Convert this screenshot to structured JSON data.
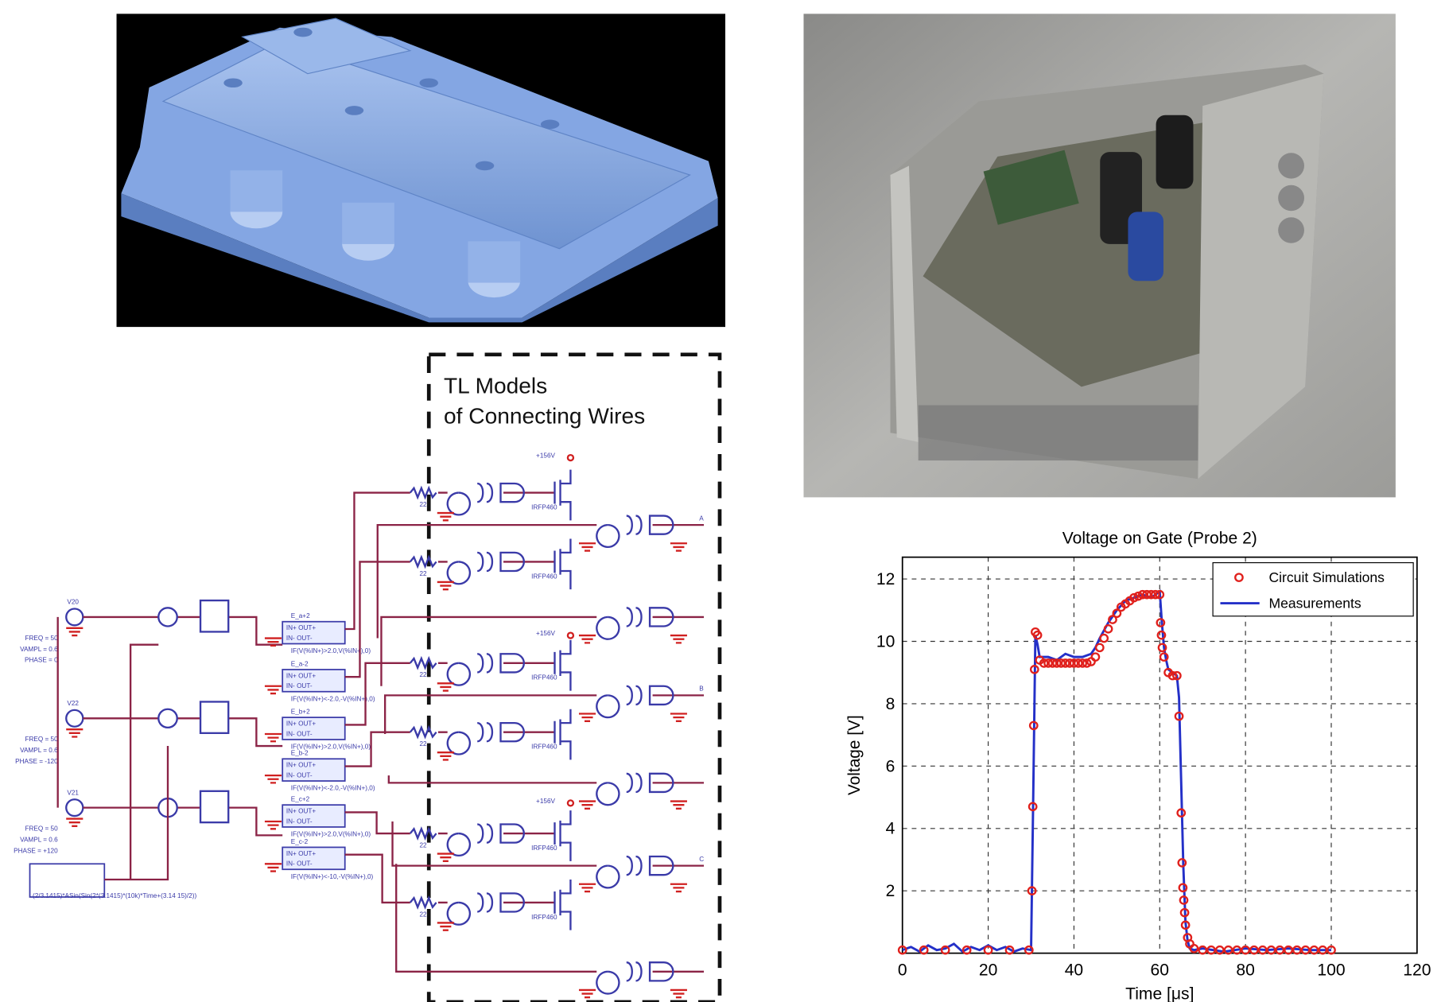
{
  "figure": {
    "schematic": {
      "heading": [
        "TL Models",
        "of Connecting Wires"
      ],
      "supply": [
        "+156V",
        "+156V",
        "+156V"
      ],
      "outputs": [
        "A",
        "B",
        "C"
      ],
      "mosfets": [
        "IRFP460",
        "IRFP460",
        "IRFP460",
        "IRFP460",
        "IRFP460",
        "IRFP460"
      ],
      "resistors": [
        "22",
        "22",
        "22",
        "22",
        "22",
        "22"
      ],
      "sources": [
        {
          "name": "V20",
          "params": [
            "FREQ = 50",
            "VAMPL = 0.6",
            "PHASE = 0"
          ]
        },
        {
          "name": "V22",
          "params": [
            "FREQ = 50",
            "VAMPL = 0.6",
            "PHASE = -120"
          ]
        },
        {
          "name": "V21",
          "params": [
            "FREQ = 50",
            "VAMPL = 0.6",
            "PHASE = +120"
          ]
        }
      ],
      "pins": [
        "IN+ OUT+",
        "IN- OUT-"
      ],
      "controls": [
        {
          "name": "E_a+2",
          "expr": "IF(V(%IN+)>2.0,V(%IN+),0)"
        },
        {
          "name": "E_a-2",
          "expr": "IF(V(%IN+)<-2.0,-V(%IN+),0)"
        },
        {
          "name": "E_b+2",
          "expr": "IF(V(%IN+)>2.0,V(%IN+),0)"
        },
        {
          "name": "E_b-2",
          "expr": "IF(V(%IN+)<-2.0,-V(%IN+),0)"
        },
        {
          "name": "E_c+2",
          "expr": "IF(V(%IN+)>2.0,V(%IN+),0)"
        },
        {
          "name": "E_c-2",
          "expr": "IF(V(%IN+)<-10,-V(%IN+),0)"
        }
      ],
      "formula": "(2/3.1415)*ASin(Sin(2*(3.1415)*(10k)*Time+(3.14 15)/2))"
    }
  },
  "chart_data": {
    "type": "line",
    "title": "Voltage on Gate (Probe 2)",
    "xlabel": "Time [μs]",
    "ylabel": "Voltage [V]",
    "xlim": [
      0,
      120
    ],
    "ylim": [
      0,
      12.7
    ],
    "xticks": [
      0,
      20,
      40,
      60,
      80,
      100,
      120
    ],
    "yticks": [
      2,
      4,
      6,
      8,
      10,
      12
    ],
    "grid": true,
    "legend": "top-right",
    "series": [
      {
        "name": "Circuit Simulations",
        "color": "#e0201c",
        "marker": "circle",
        "x": [
          0,
          5,
          10,
          15,
          20,
          25,
          29.5,
          30.2,
          30.4,
          30.6,
          30.8,
          31,
          31.5,
          32,
          33,
          34,
          35,
          36,
          37,
          38,
          39,
          40,
          41,
          42,
          43,
          44,
          45,
          46,
          47,
          48,
          49,
          50,
          51,
          52,
          53,
          54,
          55,
          56,
          57,
          58,
          59,
          60,
          60.2,
          60.4,
          60.6,
          61,
          62,
          63,
          64,
          64.5,
          65,
          65.2,
          65.4,
          65.6,
          65.8,
          66,
          66.5,
          67,
          68,
          70,
          72,
          74,
          76,
          78,
          80,
          82,
          84,
          86,
          88,
          90,
          92,
          94,
          96,
          98,
          100
        ],
        "values": [
          0.1,
          0.1,
          0.1,
          0.1,
          0.1,
          0.1,
          0.1,
          2.0,
          4.7,
          7.3,
          9.1,
          10.3,
          10.2,
          9.4,
          9.3,
          9.3,
          9.3,
          9.3,
          9.3,
          9.3,
          9.3,
          9.3,
          9.3,
          9.3,
          9.3,
          9.35,
          9.5,
          9.8,
          10.1,
          10.4,
          10.7,
          10.9,
          11.1,
          11.2,
          11.3,
          11.4,
          11.45,
          11.5,
          11.5,
          11.5,
          11.5,
          11.5,
          10.6,
          10.2,
          9.8,
          9.5,
          9.0,
          8.9,
          8.9,
          7.6,
          4.5,
          2.9,
          2.1,
          1.7,
          1.3,
          0.9,
          0.5,
          0.3,
          0.15,
          0.1,
          0.1,
          0.1,
          0.1,
          0.1,
          0.1,
          0.1,
          0.1,
          0.1,
          0.1,
          0.1,
          0.1,
          0.1,
          0.1,
          0.1,
          0.1
        ]
      },
      {
        "name": "Measurements",
        "color": "#2430c8",
        "marker": "line",
        "x": [
          0,
          2,
          4,
          6,
          8,
          10,
          12,
          14,
          16,
          18,
          20,
          22,
          24,
          26,
          28,
          30,
          30.5,
          31,
          31.5,
          32,
          34,
          36,
          38,
          40,
          42,
          44,
          45,
          46,
          48,
          50,
          52,
          54,
          56,
          58,
          60,
          60.5,
          61,
          61.5,
          62,
          63,
          64,
          64.5,
          65,
          65.5,
          66,
          66.5,
          67,
          68,
          70,
          75,
          80,
          85,
          90,
          95,
          100
        ],
        "values": [
          0.1,
          0.2,
          0.05,
          0.25,
          0.1,
          0.15,
          0.3,
          0.05,
          0.2,
          0.1,
          0.25,
          0.1,
          0.2,
          0.05,
          0.15,
          0.1,
          5.0,
          10.2,
          9.9,
          9.5,
          9.5,
          9.4,
          9.6,
          9.5,
          9.5,
          9.6,
          9.8,
          10.1,
          10.6,
          11.0,
          11.3,
          11.4,
          11.5,
          11.4,
          11.6,
          10.6,
          9.8,
          9.4,
          9.1,
          9.0,
          8.9,
          8.2,
          5.5,
          2.8,
          1.0,
          0.4,
          0.15,
          0.1,
          0.15,
          0.05,
          0.15,
          0.1,
          0.15,
          0.1,
          0.1
        ]
      }
    ]
  }
}
